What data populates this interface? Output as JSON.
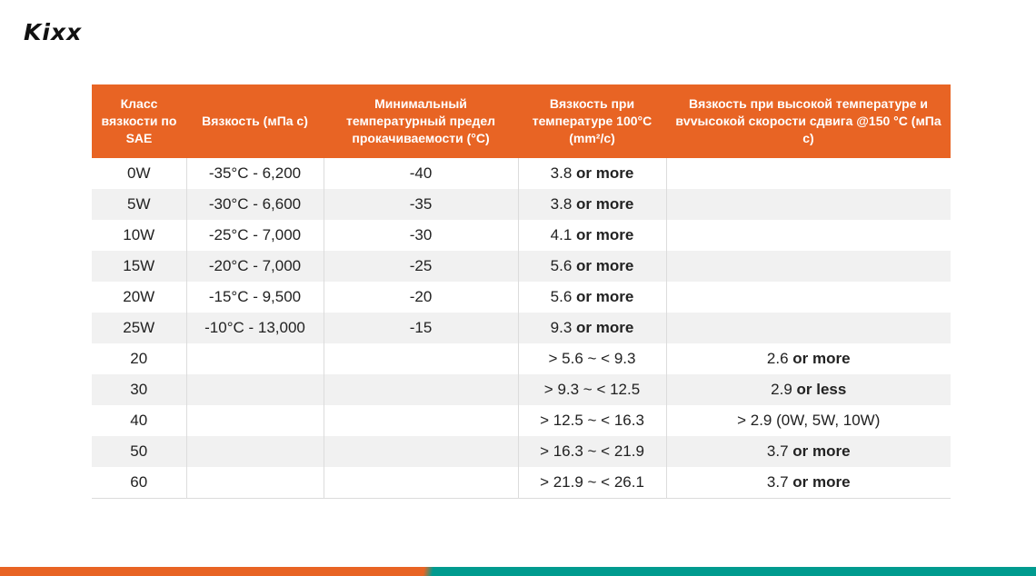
{
  "brand": {
    "logo_text": "Kixx",
    "accent": "#e86424",
    "secondary": "#009b8f"
  },
  "table": {
    "headers": [
      "Класс вязкости по SAE",
      "Вязкость (мПа с)",
      "Минимальный температурный предел прокачиваемости (°C)",
      "Вязкость при температуре 100°C (mm²/c)",
      "Вязкость при высокой температуре и вvvысокой скорости сдвига @150 °C (мПа с)"
    ],
    "rows": [
      {
        "grade": "0W",
        "viscosity": "-35°C  -  6,200",
        "min_temp": "-40",
        "v100_val": "3.8",
        "v100_suffix": "or more",
        "hths_val": "",
        "hths_suffix": ""
      },
      {
        "grade": "5W",
        "viscosity": "-30°C  -  6,600",
        "min_temp": "-35",
        "v100_val": "3.8",
        "v100_suffix": "or more",
        "hths_val": "",
        "hths_suffix": ""
      },
      {
        "grade": "10W",
        "viscosity": "-25°C  -  7,000",
        "min_temp": "-30",
        "v100_val": "4.1",
        "v100_suffix": "or more",
        "hths_val": "",
        "hths_suffix": ""
      },
      {
        "grade": "15W",
        "viscosity": "-20°C  -  7,000",
        "min_temp": "-25",
        "v100_val": "5.6",
        "v100_suffix": "or more",
        "hths_val": "",
        "hths_suffix": ""
      },
      {
        "grade": "20W",
        "viscosity": "-15°C  -  9,500",
        "min_temp": "-20",
        "v100_val": "5.6",
        "v100_suffix": "or more",
        "hths_val": "",
        "hths_suffix": ""
      },
      {
        "grade": "25W",
        "viscosity": "-10°C  -  13,000",
        "min_temp": "-15",
        "v100_val": "9.3",
        "v100_suffix": "or more",
        "hths_val": "",
        "hths_suffix": ""
      },
      {
        "grade": "20",
        "viscosity": "",
        "min_temp": "",
        "v100_val": "> 5.6  ~  < 9.3",
        "v100_suffix": "",
        "hths_val": "2.6",
        "hths_suffix": "or more"
      },
      {
        "grade": "30",
        "viscosity": "",
        "min_temp": "",
        "v100_val": "> 9.3  ~  < 12.5",
        "v100_suffix": "",
        "hths_val": "2.9",
        "hths_suffix": "or less"
      },
      {
        "grade": "40",
        "viscosity": "",
        "min_temp": "",
        "v100_val": "> 12.5  ~  < 16.3",
        "v100_suffix": "",
        "hths_val": "> 2.9 (0W, 5W, 10W)",
        "hths_suffix": ""
      },
      {
        "grade": "50",
        "viscosity": "",
        "min_temp": "",
        "v100_val": "> 16.3  ~  < 21.9",
        "v100_suffix": "",
        "hths_val": "3.7",
        "hths_suffix": "or more"
      },
      {
        "grade": "60",
        "viscosity": "",
        "min_temp": "",
        "v100_val": "> 21.9  ~  < 26.1",
        "v100_suffix": "",
        "hths_val": "3.7",
        "hths_suffix": "or more"
      }
    ]
  }
}
